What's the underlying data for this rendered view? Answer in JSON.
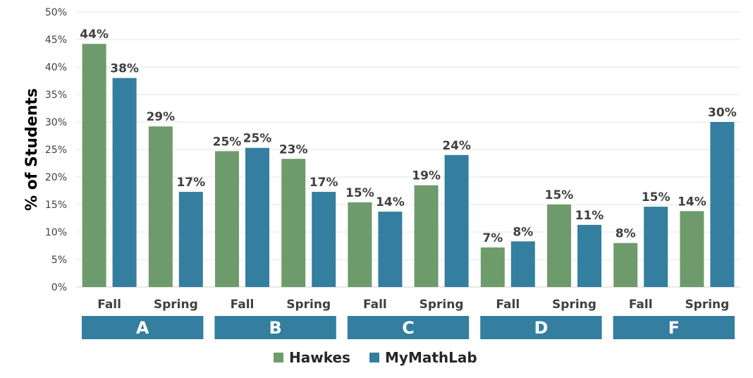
{
  "chart_data": {
    "type": "bar",
    "ylabel": "% of Students",
    "ylim": [
      0,
      50
    ],
    "yticks": [
      "0%",
      "5%",
      "10%",
      "15%",
      "20%",
      "25%",
      "30%",
      "35%",
      "40%",
      "45%",
      "50%"
    ],
    "grid": true,
    "legend_position": "bottom-center",
    "groups": [
      "A",
      "B",
      "C",
      "D",
      "F"
    ],
    "subcategories": [
      "Fall",
      "Spring"
    ],
    "categories": [
      {
        "group": "A",
        "term": "Fall"
      },
      {
        "group": "A",
        "term": "Spring"
      },
      {
        "group": "B",
        "term": "Fall"
      },
      {
        "group": "B",
        "term": "Spring"
      },
      {
        "group": "C",
        "term": "Fall"
      },
      {
        "group": "C",
        "term": "Spring"
      },
      {
        "group": "D",
        "term": "Fall"
      },
      {
        "group": "D",
        "term": "Spring"
      },
      {
        "group": "F",
        "term": "Fall"
      },
      {
        "group": "F",
        "term": "Spring"
      }
    ],
    "series": [
      {
        "name": "Hawkes",
        "color": "#6e9b6b",
        "values": [
          44.2,
          29.2,
          24.7,
          23.3,
          15.4,
          18.5,
          7.2,
          15.0,
          8.0,
          13.8
        ],
        "labels": [
          "44%",
          "29%",
          "25%",
          "23%",
          "15%",
          "19%",
          "7%",
          "15%",
          "8%",
          "14%"
        ]
      },
      {
        "name": "MyMathLab",
        "color": "#347ea0",
        "values": [
          38.0,
          17.3,
          25.3,
          17.3,
          13.7,
          24.0,
          8.3,
          11.3,
          14.6,
          30.0
        ],
        "labels": [
          "38%",
          "17%",
          "25%",
          "17%",
          "14%",
          "24%",
          "8%",
          "11%",
          "15%",
          "30%"
        ]
      }
    ],
    "group_box_color": "#347ea0",
    "gridline_color": "#e4e4e4"
  }
}
